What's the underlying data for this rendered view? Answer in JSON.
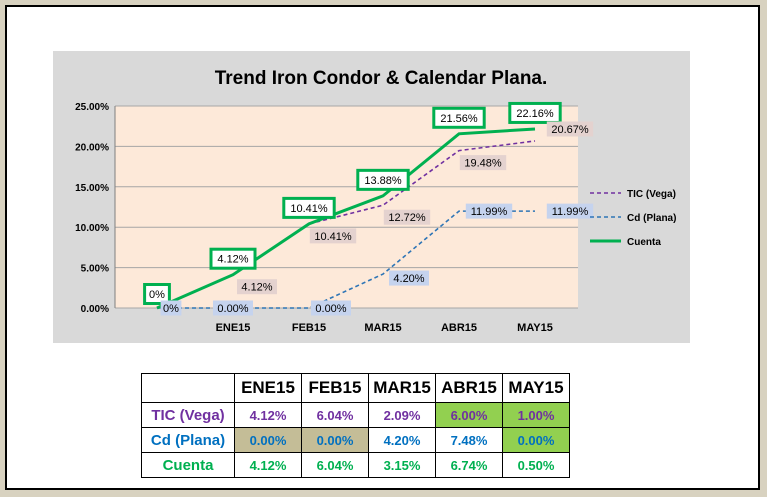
{
  "chart_data": {
    "type": "line",
    "title": "Trend Iron Condor & Calendar Plana.",
    "categories": [
      "",
      "ENE15",
      "FEB15",
      "MAR15",
      "ABR15",
      "MAY15"
    ],
    "ylim": [
      0,
      25
    ],
    "yticks": [
      "0.00%",
      "5.00%",
      "10.00%",
      "15.00%",
      "20.00%",
      "25.00%"
    ],
    "grid": true,
    "legend_position": "right",
    "series": [
      {
        "name": "TIC (Vega)",
        "style": "dashed",
        "color": "#7030a0",
        "values": [
          0,
          4.12,
          10.41,
          12.72,
          19.48,
          20.67
        ],
        "labels": [
          "",
          "4.12%",
          "10.41%",
          "12.72%",
          "19.48%",
          "20.67%"
        ]
      },
      {
        "name": "Cd (Plana)",
        "style": "dashed",
        "color": "#2e75b6",
        "values": [
          0,
          0,
          0,
          4.2,
          11.99,
          11.99
        ],
        "labels": [
          "0%",
          "0.00%",
          "0.00%",
          "4.20%",
          "11.99%",
          "11.99%"
        ]
      },
      {
        "name": "Cuenta",
        "style": "solid",
        "color": "#00b050",
        "values": [
          0,
          4.12,
          10.41,
          13.88,
          21.56,
          22.16
        ],
        "labels": [
          "0%",
          "4.12%",
          "10.41%",
          "13.88%",
          "21.56%",
          "22.16%"
        ]
      }
    ]
  },
  "table": {
    "headers": [
      "",
      "ENE15",
      "FEB15",
      "MAR15",
      "ABR15",
      "MAY15"
    ],
    "rows": [
      {
        "label": "TIC (Vega)",
        "color": "#7030a0",
        "values": [
          "4.12%",
          "6.04%",
          "2.09%",
          "6.00%",
          "1.00%"
        ],
        "fills": [
          "#ffffff",
          "#ffffff",
          "#ffffff",
          "#92d050",
          "#92d050"
        ]
      },
      {
        "label": "Cd (Plana)",
        "color": "#0070c0",
        "values": [
          "0.00%",
          "0.00%",
          "4.20%",
          "7.48%",
          "0.00%"
        ],
        "fills": [
          "#c4bd97",
          "#c4bd97",
          "#ffffff",
          "#ffffff",
          "#92d050"
        ]
      },
      {
        "label": "Cuenta",
        "color": "#00b050",
        "values": [
          "4.12%",
          "6.04%",
          "3.15%",
          "6.74%",
          "0.50%"
        ],
        "fills": [
          "#ffffff",
          "#ffffff",
          "#ffffff",
          "#ffffff",
          "#ffffff"
        ]
      }
    ]
  }
}
